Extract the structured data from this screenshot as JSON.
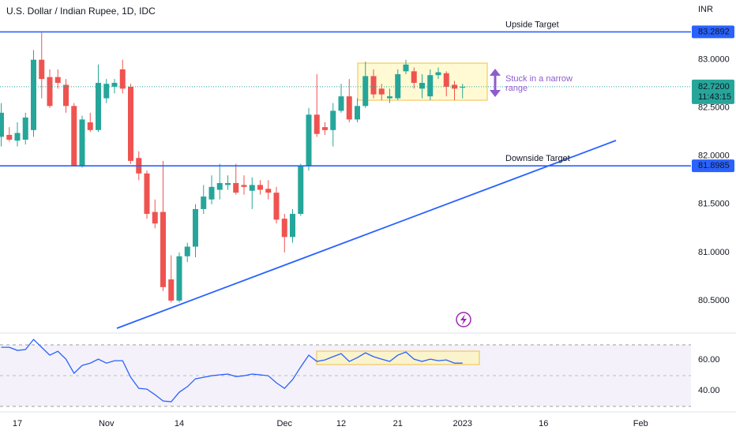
{
  "chart_data": {
    "type": "candlestick",
    "title": "U.S. Dollar / Indian Rupee, 1D, IDC",
    "currency": "INR",
    "categories": [
      null,
      null,
      "17",
      null,
      null,
      null,
      null,
      null,
      null,
      null,
      null,
      null,
      null,
      "Nov",
      null,
      null,
      null,
      null,
      null,
      null,
      null,
      null,
      "14",
      null,
      null,
      null,
      null,
      null,
      null,
      null,
      null,
      null,
      null,
      null,
      null,
      "Dec",
      null,
      null,
      null,
      null,
      null,
      null,
      "12",
      null,
      null,
      null,
      null,
      null,
      null,
      "21",
      null,
      null,
      null,
      null,
      null,
      null,
      null,
      "2023",
      null,
      null,
      null,
      null,
      null,
      null,
      null,
      null,
      null,
      "16",
      null,
      null,
      null,
      null,
      null,
      null,
      null,
      null,
      null,
      null,
      null,
      "Feb",
      null,
      null,
      null,
      null,
      null
    ],
    "open": [
      82.2,
      82.22,
      82.16,
      82.17,
      82.27,
      83.0,
      82.82,
      82.82,
      82.74,
      82.52,
      81.9,
      82.35,
      82.27,
      82.6,
      82.72,
      82.9,
      82.72,
      81.98,
      81.82,
      81.42,
      81.42,
      80.72,
      80.5,
      80.96,
      81.06,
      81.45,
      81.55,
      81.65,
      81.7,
      81.72,
      81.7,
      81.64,
      81.7,
      81.66,
      81.62,
      81.35,
      81.16,
      81.4,
      81.9,
      82.43,
      82.3,
      82.27,
      82.47,
      82.62,
      82.38,
      82.52,
      82.83,
      82.7,
      82.6,
      82.6,
      82.88,
      82.88,
      82.7,
      82.62,
      82.84,
      82.86,
      82.74,
      82.71,
      null,
      null,
      null,
      null,
      null,
      null,
      null,
      null,
      null,
      null,
      null,
      null,
      null,
      null,
      null,
      null,
      null,
      null,
      null,
      null,
      null,
      null,
      null,
      null,
      null,
      null,
      null
    ],
    "high": [
      82.55,
      82.3,
      82.35,
      82.45,
      83.1,
      83.28,
      82.9,
      82.9,
      82.8,
      82.55,
      82.42,
      82.45,
      82.95,
      82.8,
      82.8,
      83.0,
      82.75,
      82.05,
      81.85,
      81.55,
      81.95,
      80.97,
      81.0,
      81.1,
      81.5,
      81.7,
      81.8,
      81.92,
      81.8,
      81.92,
      81.8,
      81.78,
      81.75,
      81.75,
      81.68,
      81.4,
      81.45,
      81.92,
      82.5,
      82.85,
      82.35,
      82.55,
      82.75,
      82.8,
      82.6,
      82.98,
      82.9,
      82.75,
      82.7,
      82.9,
      83.0,
      82.92,
      82.85,
      82.9,
      82.92,
      82.88,
      82.78,
      82.75,
      null,
      null,
      null,
      null,
      null,
      null,
      null,
      null,
      null,
      null,
      null,
      null,
      null,
      null,
      null,
      null,
      null,
      null,
      null,
      null,
      null,
      null,
      null,
      null,
      null,
      null,
      null
    ],
    "low": [
      82.1,
      82.15,
      82.1,
      82.12,
      82.2,
      82.6,
      82.5,
      82.7,
      82.45,
      81.9,
      81.88,
      82.25,
      82.25,
      82.55,
      82.65,
      82.65,
      81.92,
      81.75,
      81.35,
      81.25,
      80.6,
      80.48,
      80.48,
      80.9,
      80.95,
      81.4,
      81.5,
      81.55,
      81.65,
      81.6,
      81.6,
      81.45,
      81.6,
      81.55,
      81.3,
      81.0,
      81.1,
      81.38,
      81.85,
      82.2,
      82.22,
      82.1,
      82.45,
      82.35,
      82.35,
      82.5,
      82.6,
      82.58,
      82.55,
      82.58,
      82.85,
      82.7,
      82.6,
      82.58,
      82.8,
      82.62,
      82.58,
      82.6,
      null,
      null,
      null,
      null,
      null,
      null,
      null,
      null,
      null,
      null,
      null,
      null,
      null,
      null,
      null,
      null,
      null,
      null,
      null,
      null,
      null,
      null,
      null,
      null,
      null,
      null,
      null
    ],
    "close": [
      82.45,
      82.17,
      82.24,
      82.4,
      83.0,
      82.8,
      82.52,
      82.76,
      82.52,
      81.9,
      82.38,
      82.27,
      82.76,
      82.75,
      82.76,
      82.7,
      81.95,
      81.82,
      81.4,
      81.3,
      80.64,
      80.5,
      80.96,
      81.06,
      81.45,
      81.58,
      81.68,
      81.72,
      81.72,
      81.62,
      81.68,
      81.7,
      81.65,
      81.62,
      81.34,
      81.16,
      81.4,
      81.9,
      82.43,
      82.23,
      82.27,
      82.47,
      82.62,
      82.38,
      82.52,
      82.83,
      82.64,
      82.64,
      82.62,
      82.85,
      82.95,
      82.76,
      82.76,
      82.84,
      82.87,
      82.72,
      82.7,
      82.72,
      null,
      null,
      null,
      null,
      null,
      null,
      null,
      null,
      null,
      null,
      null,
      null,
      null,
      null,
      null,
      null,
      null,
      null,
      null,
      null,
      null,
      null,
      null,
      null,
      null,
      null,
      null
    ],
    "up_color": "#26a69a",
    "down_color": "#ef5350",
    "ylim": [
      80.18,
      83.62
    ],
    "yticks": [
      {
        "value": 83.0,
        "label": "83.0000"
      },
      {
        "value": 82.5,
        "label": "82.5000"
      },
      {
        "value": 82.0,
        "label": "82.0000"
      },
      {
        "value": 81.5,
        "label": "81.5000"
      },
      {
        "value": 81.0,
        "label": "81.0000"
      },
      {
        "value": 80.5,
        "label": "80.5000"
      }
    ],
    "last_price": {
      "value": 82.72,
      "label": "82.7200"
    },
    "countdown": "11:43:15",
    "levels": [
      {
        "name": "Upside Target",
        "value": 83.2892,
        "color": "#2962ff"
      },
      {
        "name": "Downside Target",
        "value": 81.8985,
        "color": "#2962ff"
      }
    ],
    "annotation": "Stuck in a narrow range",
    "rsi": {
      "type": "line",
      "color": "#2962ff",
      "values": [
        68.2,
        68.2,
        66.2,
        66.7,
        73.3,
        68.2,
        63.1,
        65.6,
        60.5,
        51.3,
        56.4,
        57.9,
        60.5,
        57.9,
        59.5,
        59.5,
        48.7,
        41.5,
        41.0,
        37.4,
        33.3,
        32.8,
        39.0,
        42.6,
        47.7,
        48.7,
        49.7,
        50.3,
        50.8,
        49.2,
        49.7,
        50.8,
        50.3,
        49.7,
        45.1,
        41.5,
        47.2,
        55.4,
        63.1,
        59.0,
        60.0,
        62.1,
        64.1,
        59.0,
        61.5,
        64.6,
        62.1,
        60.5,
        59.0,
        63.1,
        65.1,
        60.5,
        59.0,
        60.5,
        59.5,
        60.0,
        57.9,
        57.9,
        null,
        null,
        null,
        null,
        null,
        null,
        null,
        null,
        null,
        null,
        null,
        null,
        null,
        null,
        null,
        null,
        null,
        null,
        null,
        null,
        null,
        null,
        null,
        null,
        null,
        null,
        null
      ],
      "ylim": [
        26.2,
        77.5
      ],
      "yticks": [
        {
          "value": 60,
          "label": "60.00"
        },
        {
          "value": 40,
          "label": "40.00"
        }
      ]
    }
  }
}
